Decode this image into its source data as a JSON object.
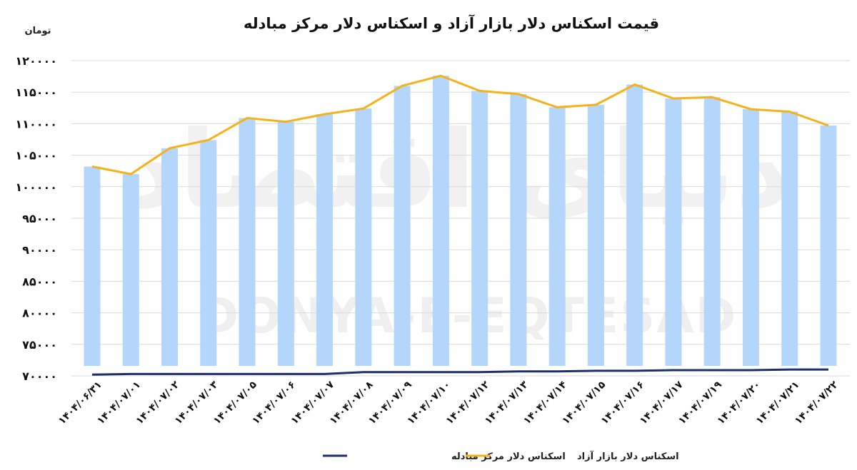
{
  "chart_data": {
    "type": "bar+line",
    "title": "قیمت اسکناس دلار بازار آزاد و اسکناس دلار مرکز مبادله",
    "y_unit": "تومان",
    "ylim": [
      70000,
      120000
    ],
    "y_ticks": [
      "۷۰۰۰۰",
      "۷۵۰۰۰",
      "۸۰۰۰۰",
      "۸۵۰۰۰",
      "۹۰۰۰۰",
      "۹۵۰۰۰",
      "۱۰۰۰۰۰",
      "۱۰۵۰۰۰",
      "۱۱۰۰۰۰",
      "۱۱۵۰۰۰",
      "۱۲۰۰۰۰"
    ],
    "y_tick_values": [
      70000,
      75000,
      80000,
      85000,
      90000,
      95000,
      100000,
      105000,
      110000,
      115000,
      120000
    ],
    "grid": true,
    "legend_position": "bottom",
    "categories": [
      "۱۴۰۴/۰۶/۳۱",
      "۱۴۰۴/۰۷/۰۱",
      "۱۴۰۴/۰۷/۰۲",
      "۱۴۰۴/۰۷/۰۳",
      "۱۴۰۴/۰۷/۰۵",
      "۱۴۰۴/۰۷/۰۶",
      "۱۴۰۴/۰۷/۰۷",
      "۱۴۰۴/۰۷/۰۸",
      "۱۴۰۴/۰۷/۰۹",
      "۱۴۰۴/۰۷/۱۰",
      "۱۴۰۴/۰۷/۱۲",
      "۱۴۰۴/۰۷/۱۳",
      "۱۴۰۴/۰۷/۱۴",
      "۱۴۰۴/۰۷/۱۵",
      "۱۴۰۴/۰۷/۱۶",
      "۱۴۰۴/۰۷/۱۷",
      "۱۴۰۴/۰۷/۱۹",
      "۱۴۰۴/۰۷/۲۰",
      "۱۴۰۴/۰۷/۲۱",
      "۱۴۰۴/۰۷/۲۲"
    ],
    "series": [
      {
        "name": "اسکناس دلار بازار آزاد",
        "render": "bar+line",
        "color": "#f5b21b",
        "bar_color": "#b4d6fa",
        "values": [
          103200,
          102000,
          106100,
          107400,
          110900,
          110300,
          111500,
          112400,
          116000,
          117600,
          115200,
          114700,
          112600,
          113000,
          116200,
          114000,
          114200,
          112300,
          111900,
          109700
        ]
      },
      {
        "name": "اسکناس دلار مرکز مبادله",
        "render": "line",
        "color": "#1f2f6e",
        "values": [
          70200,
          70300,
          70300,
          70300,
          70300,
          70300,
          70300,
          70600,
          70600,
          70600,
          70600,
          70700,
          70700,
          70800,
          70800,
          70900,
          70900,
          70900,
          71000,
          71000
        ]
      }
    ]
  },
  "watermark": {
    "latin": "DONYA-E-EQTESAD",
    "persian": "دنیای اقتصاد"
  }
}
